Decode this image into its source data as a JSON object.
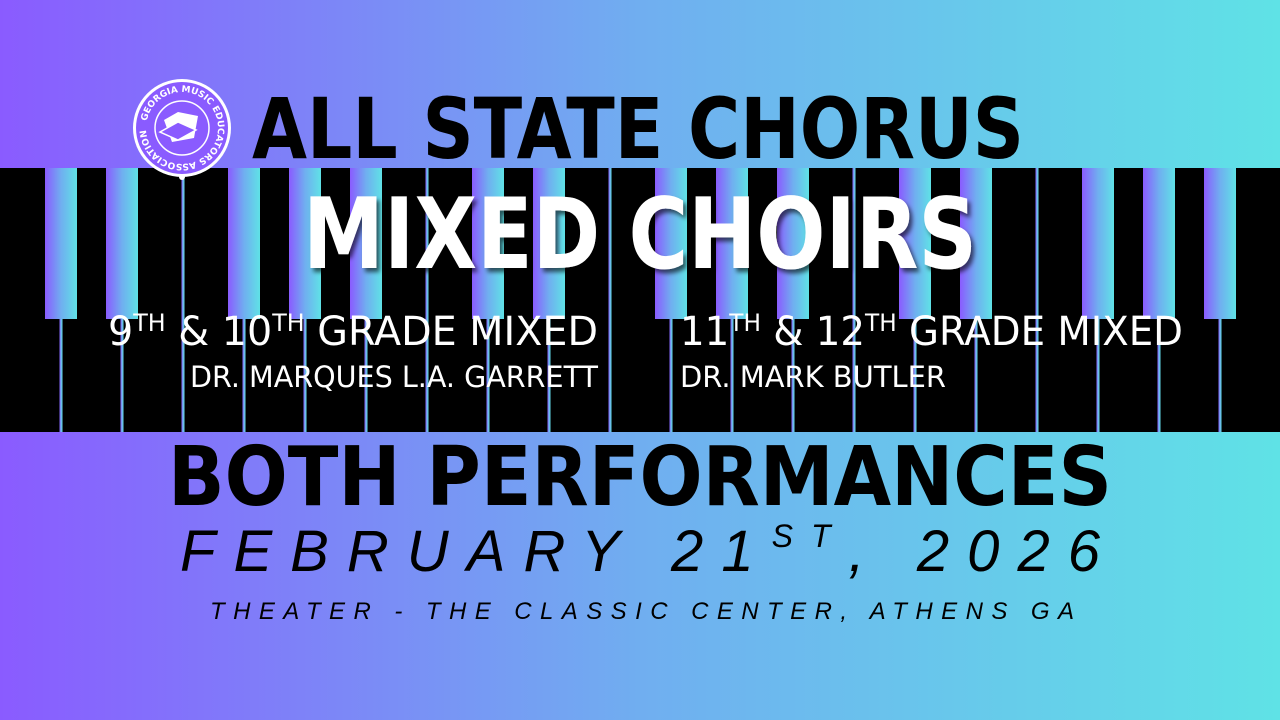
{
  "colors": {
    "gradient_left": "#8a5bff",
    "gradient_mid": "#70aef0",
    "gradient_right": "#5fe2e6",
    "keys": "#000000",
    "title_white": "#ffffff"
  },
  "logo": {
    "text": "GEORGIA MUSIC EDUCATORS ASSOCIATION",
    "icon": "gmea-seal-icon"
  },
  "header": {
    "title": "ALL STATE CHORUS",
    "subtitle": "MIXED CHOIRS"
  },
  "choirs": [
    {
      "grade_a": "9",
      "sup_a": "TH",
      "amp": " & 10",
      "sup_b": "TH",
      "rest": " GRADE MIXED",
      "conductor": "DR. MARQUES L.A. GARRETT"
    },
    {
      "grade_a": "11",
      "sup_a": "TH",
      "amp": " & 12",
      "sup_b": "TH",
      "rest": " GRADE MIXED",
      "conductor": "DR. MARK BUTLER"
    }
  ],
  "event": {
    "performances": "BOTH PERFORMANCES",
    "date_main": "FEBRUARY 21",
    "date_sup": "ST",
    "date_year": ", 2026",
    "venue": "THEATER - THE CLASSIC CENTER, ATHENS GA"
  }
}
